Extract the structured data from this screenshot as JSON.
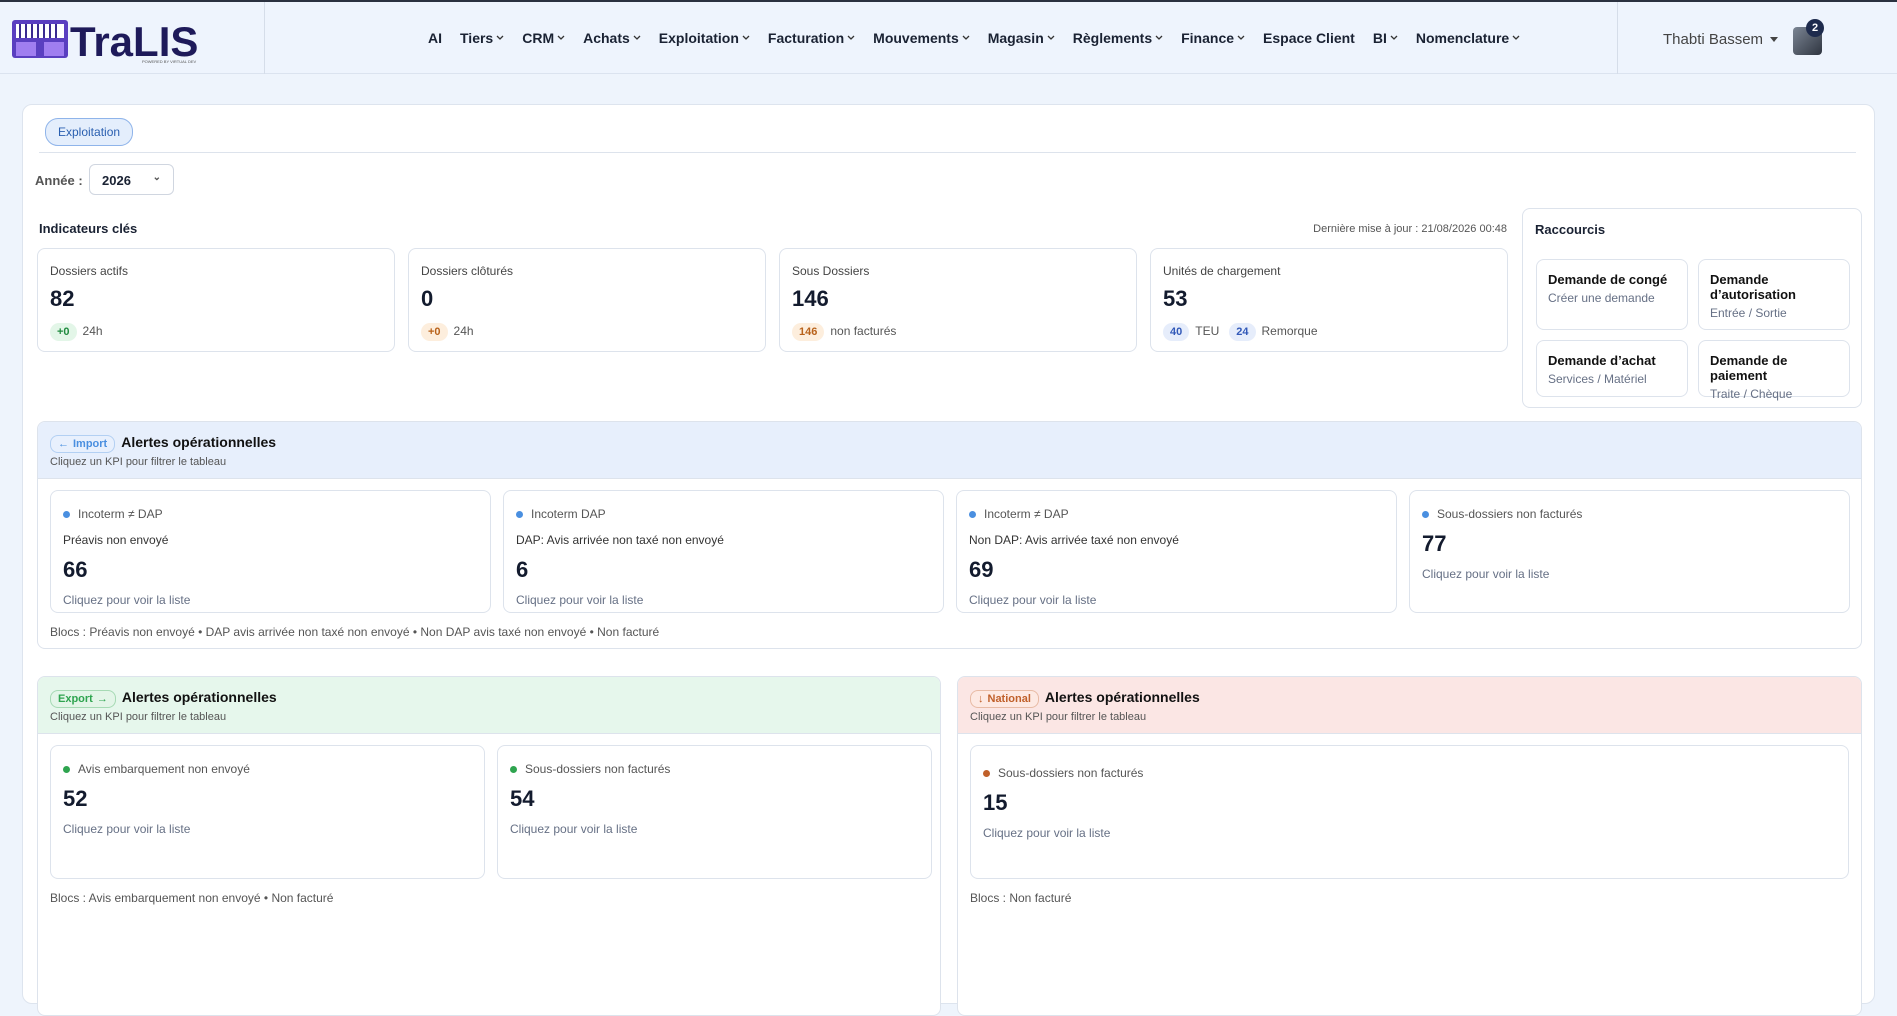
{
  "header": {
    "logo": "TraLIS",
    "logo_tagline": "POWERED BY VIRTUAL DEV",
    "nav": [
      {
        "label": "AI",
        "dropdown": false
      },
      {
        "label": "Tiers",
        "dropdown": true
      },
      {
        "label": "CRM",
        "dropdown": true
      },
      {
        "label": "Achats",
        "dropdown": true
      },
      {
        "label": "Exploitation",
        "dropdown": true
      },
      {
        "label": "Facturation",
        "dropdown": true
      },
      {
        "label": "Mouvements",
        "dropdown": true
      },
      {
        "label": "Magasin",
        "dropdown": true
      },
      {
        "label": "Règlements",
        "dropdown": true
      },
      {
        "label": "Finance",
        "dropdown": true
      },
      {
        "label": "Espace Client",
        "dropdown": false
      },
      {
        "label": "BI",
        "dropdown": true
      },
      {
        "label": "Nomenclature",
        "dropdown": true
      }
    ],
    "user": {
      "name": "Thabti Bassem",
      "notifications": 2
    }
  },
  "page": {
    "tab": "Exploitation",
    "year_label": "Année :",
    "year": 2026
  },
  "kpis": {
    "title": "Indicateurs clés",
    "updated": "Dernière mise à jour : 21/08/2026 00:48",
    "cards": [
      {
        "label": "Dossiers actifs",
        "value": 82,
        "badges": [
          {
            "value": "+0",
            "text": "24h",
            "color": "green"
          }
        ]
      },
      {
        "label": "Dossiers clôturés",
        "value": 0,
        "badges": [
          {
            "value": "+0",
            "text": "24h",
            "color": "orange"
          }
        ]
      },
      {
        "label": "Sous Dossiers",
        "value": 146,
        "badges": [
          {
            "value": 146,
            "text": "non facturés",
            "color": "orange"
          }
        ]
      },
      {
        "label": "Unités de chargement",
        "value": 53,
        "badges": [
          {
            "value": 40,
            "text": "TEU",
            "color": "blue"
          },
          {
            "value": 24,
            "text": "Remorque",
            "color": "blue"
          }
        ]
      }
    ]
  },
  "shortcuts": {
    "title": "Raccourcis",
    "items": [
      {
        "title": "Demande de congé",
        "subtitle": "Créer une demande"
      },
      {
        "title": "Demande d’autorisation",
        "subtitle": "Entrée / Sortie"
      },
      {
        "title": "Demande d’achat",
        "subtitle": "Services / Matériel"
      },
      {
        "title": "Demande de paiement",
        "subtitle": "Traite / Chèque"
      }
    ]
  },
  "alerts": [
    {
      "tag": "Import",
      "title": "Alertes opérationnelles",
      "hint": "Cliquez un KPI pour filtrer le tableau",
      "color": "#4a8fe0",
      "cards": [
        {
          "tag": "Incoterm ≠ DAP",
          "desc": "Préavis non envoyé",
          "value": 66,
          "link": "Cliquez pour voir la liste"
        },
        {
          "tag": "Incoterm DAP",
          "desc": "DAP: Avis arrivée non taxé non envoyé",
          "value": 6,
          "link": "Cliquez pour voir la liste"
        },
        {
          "tag": "Incoterm ≠ DAP",
          "desc": "Non DAP: Avis arrivée taxé non envoyé",
          "value": 69,
          "link": "Cliquez pour voir la liste"
        },
        {
          "tag": "Sous-dossiers non facturés",
          "value": 77,
          "link": "Cliquez pour voir la liste"
        }
      ],
      "footer": "Blocs : Préavis non envoyé • DAP avis arrivée non taxé non envoyé • Non DAP avis taxé non envoyé • Non facturé"
    },
    {
      "tag": "Export",
      "title": "Alertes opérationnelles",
      "hint": "Cliquez un KPI pour filtrer le tableau",
      "color": "#2ea44f",
      "cards": [
        {
          "tag": "Avis embarquement non envoyé",
          "value": 52,
          "link": "Cliquez pour voir la liste"
        },
        {
          "tag": "Sous-dossiers non facturés",
          "value": 54,
          "link": "Cliquez pour voir la liste"
        }
      ],
      "footer": "Blocs : Avis embarquement non envoyé • Non facturé"
    },
    {
      "tag": "National",
      "title": "Alertes opérationnelles",
      "hint": "Cliquez un KPI pour filtrer le tableau",
      "color": "#c0602a",
      "cards": [
        {
          "tag": "Sous-dossiers non facturés",
          "value": 15,
          "link": "Cliquez pour voir la liste"
        }
      ],
      "footer": "Blocs : Non facturé"
    }
  ]
}
